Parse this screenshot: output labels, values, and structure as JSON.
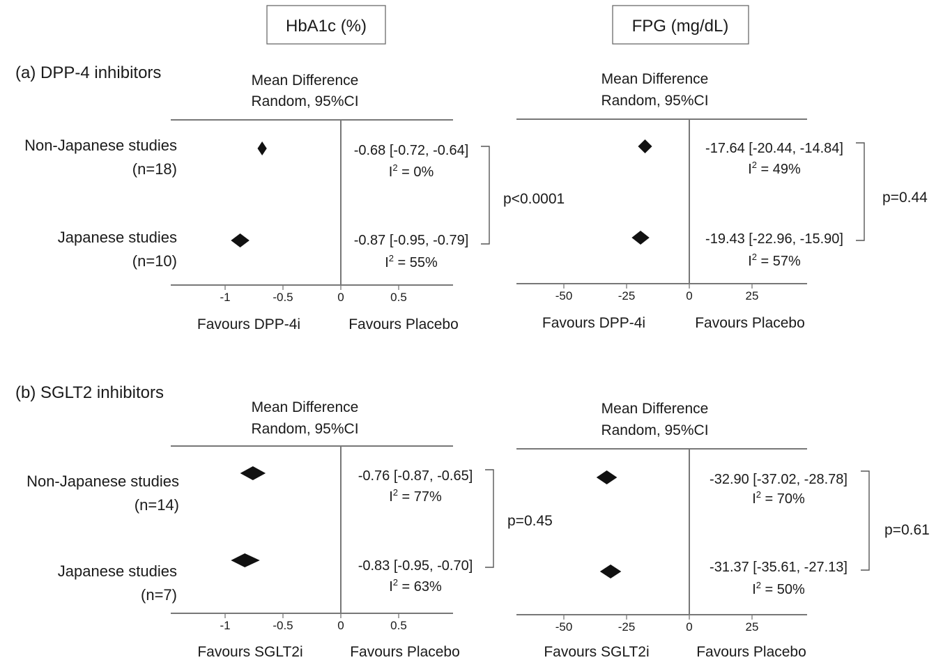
{
  "column_headers": [
    "HbA1c (%)",
    "FPG (mg/dL)"
  ],
  "chart_data": [
    {
      "type": "forest",
      "panel": "(a) DPP-4 inhibitors",
      "outcome": "HbA1c (%)",
      "title_lines": [
        "Mean Difference",
        "Random, 95%CI"
      ],
      "xlim": [
        -1.5,
        0.9
      ],
      "ticks": [
        -1,
        -0.5,
        0,
        0.5
      ],
      "tick_labels": [
        "-1",
        "-0.5",
        "0",
        "0.5"
      ],
      "favours_left": "Favours DPP-4i",
      "favours_right": "Favours Placebo",
      "pvalue": "p<0.0001",
      "rows": [
        {
          "label": "Non-Japanese studies",
          "n": "(n=18)",
          "mean": -0.68,
          "lower": -0.72,
          "upper": -0.64,
          "ci_text": "-0.68 [-0.72, -0.64]",
          "i2_value": "= 0%"
        },
        {
          "label": "Japanese studies",
          "n": "(n=10)",
          "mean": -0.87,
          "lower": -0.95,
          "upper": -0.79,
          "ci_text": "-0.87 [-0.95, -0.79]",
          "i2_value": "= 55%"
        }
      ]
    },
    {
      "type": "forest",
      "panel": "(a) DPP-4 inhibitors",
      "outcome": "FPG (mg/dL)",
      "title_lines": [
        "Mean Difference",
        "Random, 95%CI"
      ],
      "xlim": [
        -67,
        46
      ],
      "ticks": [
        -50,
        -25,
        0,
        25
      ],
      "tick_labels": [
        "-50",
        "-25",
        "0",
        "25"
      ],
      "favours_left": "Favours DPP-4i",
      "favours_right": "Favours Placebo",
      "pvalue": "p=0.44",
      "rows": [
        {
          "label": "",
          "n": "",
          "mean": -17.64,
          "lower": -20.44,
          "upper": -14.84,
          "ci_text": "-17.64 [-20.44, -14.84]",
          "i2_value": "= 49%"
        },
        {
          "label": "",
          "n": "",
          "mean": -19.43,
          "lower": -22.96,
          "upper": -15.9,
          "ci_text": "-19.43 [-22.96, -15.90]",
          "i2_value": "= 57%"
        }
      ]
    },
    {
      "type": "forest",
      "panel": "(b) SGLT2 inhibitors",
      "outcome": "HbA1c (%)",
      "title_lines": [
        "Mean Difference",
        "Random, 95%CI"
      ],
      "xlim": [
        -1.5,
        0.9
      ],
      "ticks": [
        -1,
        -0.5,
        0,
        0.5
      ],
      "tick_labels": [
        "-1",
        "-0.5",
        "0",
        "0.5"
      ],
      "favours_left": "Favours SGLT2i",
      "favours_right": "Favours Placebo",
      "pvalue": "p=0.45",
      "rows": [
        {
          "label": "Non-Japanese studies",
          "n": "(n=14)",
          "mean": -0.76,
          "lower": -0.87,
          "upper": -0.65,
          "ci_text": "-0.76 [-0.87, -0.65]",
          "i2_value": "= 77%"
        },
        {
          "label": "Japanese studies",
          "n": "(n=7)",
          "mean": -0.83,
          "lower": -0.95,
          "upper": -0.7,
          "ci_text": "-0.83 [-0.95, -0.70]",
          "i2_value": "= 63%"
        }
      ]
    },
    {
      "type": "forest",
      "panel": "(b) SGLT2 inhibitors",
      "outcome": "FPG (mg/dL)",
      "title_lines": [
        "Mean Difference",
        "Random, 95%CI"
      ],
      "xlim": [
        -67,
        46
      ],
      "ticks": [
        -50,
        -25,
        0,
        25
      ],
      "tick_labels": [
        "-50",
        "-25",
        "0",
        "25"
      ],
      "favours_left": "Favours SGLT2i",
      "favours_right": "Favours Placebo",
      "pvalue": "p=0.61",
      "rows": [
        {
          "label": "",
          "n": "",
          "mean": -32.9,
          "lower": -37.02,
          "upper": -28.78,
          "ci_text": "-32.90 [-37.02, -28.78]",
          "i2_value": "= 70%"
        },
        {
          "label": "",
          "n": "",
          "mean": -31.37,
          "lower": -35.61,
          "upper": -27.13,
          "ci_text": "-31.37 [-35.61, -27.13]",
          "i2_value": "= 50%"
        }
      ]
    }
  ]
}
